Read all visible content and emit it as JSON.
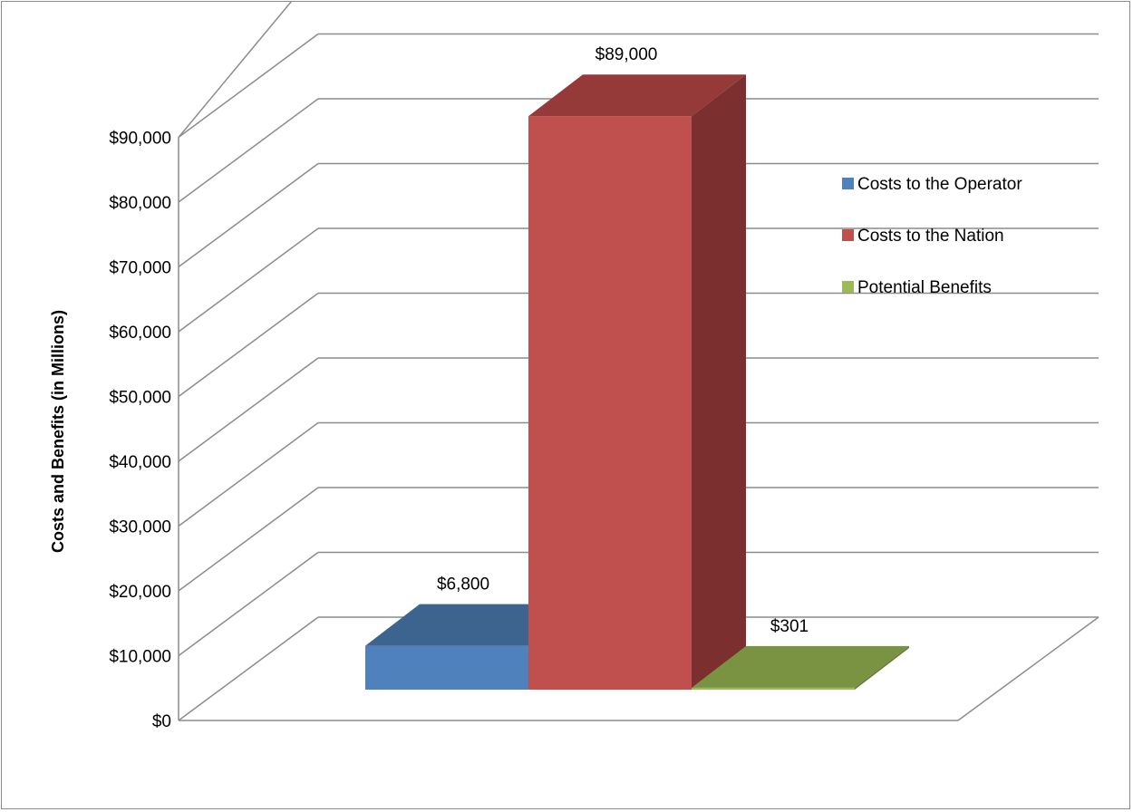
{
  "chart_data": {
    "type": "bar",
    "title": "",
    "xlabel": "",
    "ylabel": "Costs and Benefits (in Millions)",
    "ylim": [
      0,
      90000
    ],
    "y_ticks": [
      "$0",
      "$10,000",
      "$20,000",
      "$30,000",
      "$40,000",
      "$50,000",
      "$60,000",
      "$70,000",
      "$80,000",
      "$90,000"
    ],
    "y_tick_values": [
      0,
      10000,
      20000,
      30000,
      40000,
      50000,
      60000,
      70000,
      80000,
      90000
    ],
    "grid": true,
    "three_d": true,
    "legend_position": "right",
    "series": [
      {
        "name": "Costs to the Operator",
        "value": 6800,
        "label": "$6,800",
        "color": "#4f81bd",
        "top_color": "#3d638f",
        "side_color": "#2f4f75"
      },
      {
        "name": "Costs to the Nation",
        "value": 89000,
        "label": "$89,000",
        "color": "#c0504d",
        "top_color": "#953a38",
        "side_color": "#7b2f2e"
      },
      {
        "name": "Potential Benefits",
        "value": 301,
        "label": "$301",
        "color": "#9bbb59",
        "top_color": "#7a9342",
        "side_color": "#637a36"
      }
    ]
  }
}
